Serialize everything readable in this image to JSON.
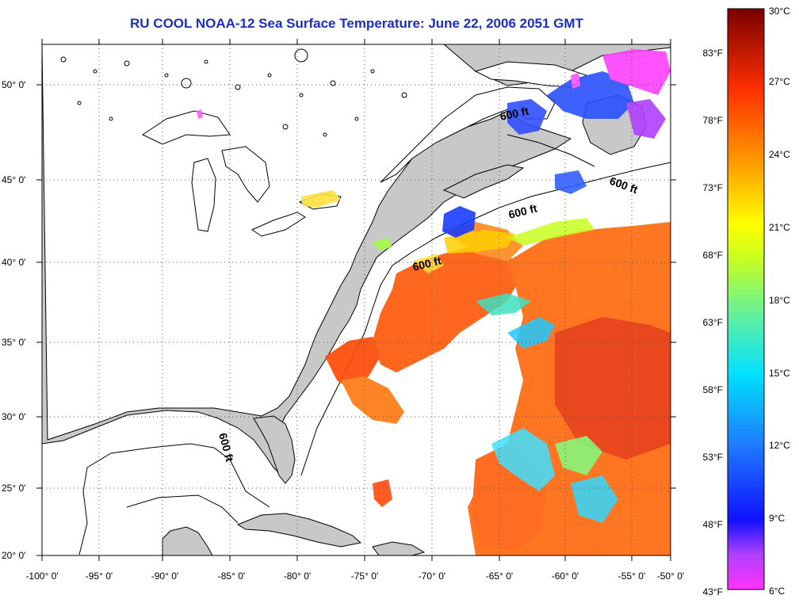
{
  "title": "RU COOL  NOAA-12  Sea Surface Temperature:  June 22, 2006 2051 GMT",
  "lat_labels": [
    "50° 0'",
    "45° 0'",
    "40° 0'",
    "35° 0'",
    "30° 0'",
    "25° 0'",
    "20° 0'"
  ],
  "lon_labels": [
    "-100° 0'",
    "-95° 0'",
    "-90° 0'",
    "-85° 0'",
    "-80° 0'",
    "-75° 0'",
    "-70° 0'",
    "-65° 0'",
    "-60° 0'",
    "-55° 0'",
    "-50° 0'"
  ],
  "contour_label": "600 ft",
  "colorbar": {
    "celsius": [
      "30°C",
      "27°C",
      "24°C",
      "21°C",
      "18°C",
      "15°C",
      "12°C",
      "9°C",
      "6°C"
    ],
    "fahrenheit": [
      "83°F",
      "78°F",
      "73°F",
      "68°F",
      "63°F",
      "58°F",
      "53°F",
      "48°F",
      "43°F"
    ]
  },
  "colors": {
    "title": "#1a2ec8",
    "land": "#c8c8c8",
    "water": "#ffffff"
  }
}
